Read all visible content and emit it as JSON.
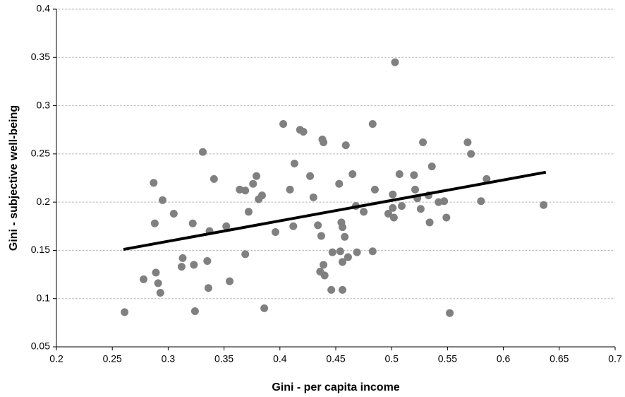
{
  "chart_data": {
    "type": "scatter",
    "xlabel": "Gini - per capita income",
    "ylabel": "Gini - subjective well-being",
    "color": "#808080",
    "xlim": [
      0.2,
      0.7
    ],
    "ylim": [
      0.05,
      0.4
    ],
    "xticks": [
      0.2,
      0.25,
      0.3,
      0.35,
      0.4,
      0.45,
      0.5,
      0.55,
      0.6,
      0.65,
      0.7
    ],
    "yticks": [
      0.05,
      0.1,
      0.15,
      0.2,
      0.25,
      0.3,
      0.35,
      0.4
    ],
    "grid": true,
    "x": [
      0.261,
      0.278,
      0.287,
      0.288,
      0.289,
      0.291,
      0.293,
      0.295,
      0.305,
      0.312,
      0.313,
      0.322,
      0.323,
      0.324,
      0.331,
      0.335,
      0.336,
      0.337,
      0.341,
      0.352,
      0.355,
      0.364,
      0.369,
      0.369,
      0.372,
      0.376,
      0.379,
      0.381,
      0.384,
      0.386,
      0.396,
      0.403,
      0.409,
      0.412,
      0.413,
      0.418,
      0.421,
      0.427,
      0.43,
      0.434,
      0.436,
      0.437,
      0.438,
      0.439,
      0.439,
      0.44,
      0.446,
      0.447,
      0.453,
      0.454,
      0.455,
      0.456,
      0.456,
      0.456,
      0.458,
      0.459,
      0.461,
      0.465,
      0.468,
      0.469,
      0.475,
      0.483,
      0.483,
      0.485,
      0.497,
      0.501,
      0.501,
      0.502,
      0.503,
      0.507,
      0.509,
      0.52,
      0.521,
      0.523,
      0.526,
      0.528,
      0.533,
      0.534,
      0.536,
      0.542,
      0.547,
      0.549,
      0.552,
      0.568,
      0.571,
      0.58,
      0.585,
      0.636
    ],
    "y": [
      0.086,
      0.12,
      0.22,
      0.178,
      0.127,
      0.116,
      0.106,
      0.202,
      0.188,
      0.133,
      0.142,
      0.178,
      0.135,
      0.087,
      0.252,
      0.139,
      0.111,
      0.17,
      0.224,
      0.175,
      0.118,
      0.213,
      0.212,
      0.146,
      0.19,
      0.219,
      0.227,
      0.203,
      0.207,
      0.09,
      0.169,
      0.281,
      0.213,
      0.175,
      0.24,
      0.275,
      0.273,
      0.227,
      0.205,
      0.176,
      0.128,
      0.165,
      0.265,
      0.262,
      0.135,
      0.124,
      0.109,
      0.148,
      0.219,
      0.149,
      0.179,
      0.138,
      0.174,
      0.109,
      0.164,
      0.259,
      0.143,
      0.229,
      0.196,
      0.148,
      0.19,
      0.281,
      0.149,
      0.213,
      0.188,
      0.194,
      0.208,
      0.184,
      0.345,
      0.229,
      0.196,
      0.228,
      0.213,
      0.204,
      0.193,
      0.262,
      0.207,
      0.179,
      0.237,
      0.2,
      0.201,
      0.184,
      0.085,
      0.262,
      0.25,
      0.201,
      0.224,
      0.197
    ],
    "trendline": {
      "x": [
        0.26,
        0.638
      ],
      "y": [
        0.151,
        0.231
      ],
      "color": "#000000"
    }
  }
}
